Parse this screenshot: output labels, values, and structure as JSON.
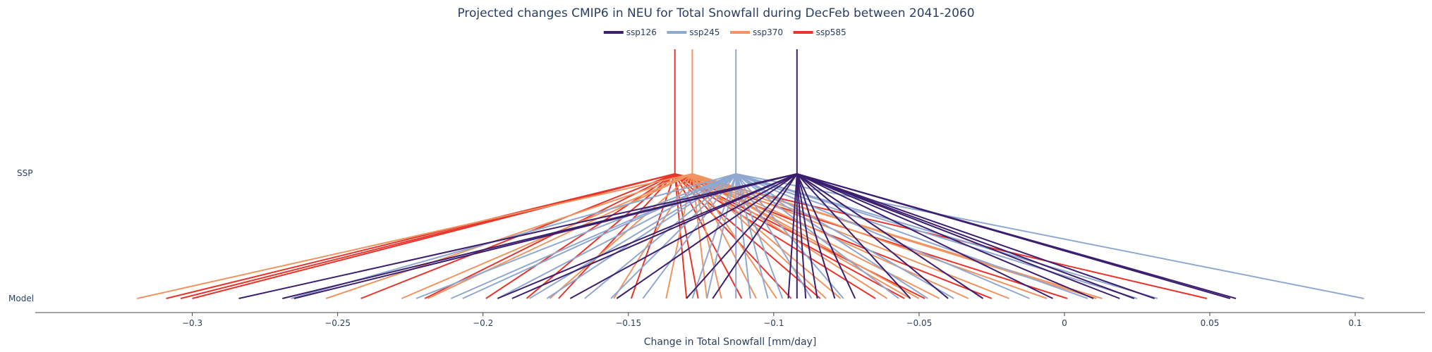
{
  "chart_data": {
    "type": "line",
    "title": "Projected changes CMIP6 in NEU for Total Snowfall during DecFeb between 2041-2060",
    "xlabel": "Change in Total Snowfall [mm/day]",
    "ylabel": "",
    "y_categories": [
      "Model",
      "SSP"
    ],
    "xlim": [
      -0.354,
      0.124
    ],
    "x_ticks": [
      -0.3,
      -0.25,
      -0.2,
      -0.15,
      -0.1,
      -0.05,
      0,
      0.05,
      0.1
    ],
    "x_tick_labels": [
      "−0.3",
      "−0.25",
      "−0.2",
      "−0.15",
      "−0.1",
      "−0.05",
      "0",
      "0.05",
      "0.1"
    ],
    "grid": false,
    "legend_position": "top-center",
    "series": [
      {
        "name": "ssp126",
        "color": "#3b1f6e",
        "ssp_mean": -0.092,
        "models": [
          -0.284,
          -0.269,
          -0.265,
          -0.195,
          -0.19,
          -0.17,
          -0.154,
          -0.13,
          -0.121,
          -0.095,
          -0.092,
          -0.089,
          -0.085,
          -0.079,
          -0.072,
          -0.053,
          -0.04,
          -0.028,
          -0.004,
          0.01,
          0.019,
          0.024,
          0.031,
          0.057,
          0.059
        ]
      },
      {
        "name": "ssp245",
        "color": "#8fa8d0",
        "ssp_mean": -0.113,
        "models": [
          -0.266,
          -0.223,
          -0.211,
          -0.207,
          -0.195,
          -0.184,
          -0.178,
          -0.165,
          -0.156,
          -0.145,
          -0.128,
          -0.123,
          -0.113,
          -0.108,
          -0.102,
          -0.097,
          -0.087,
          -0.076,
          -0.057,
          -0.047,
          -0.038,
          -0.012,
          0.008,
          0.025,
          0.032,
          0.103
        ]
      },
      {
        "name": "ssp370",
        "color": "#f09460",
        "ssp_mean": -0.128,
        "models": [
          -0.319,
          -0.254,
          -0.228,
          -0.219,
          -0.177,
          -0.155,
          -0.137,
          -0.123,
          -0.118,
          -0.106,
          -0.099,
          -0.082,
          -0.077,
          -0.061,
          -0.053,
          -0.05,
          -0.043,
          -0.033,
          -0.019,
          -0.006,
          0.011,
          0.013
        ]
      },
      {
        "name": "ssp585",
        "color": "#e8342a",
        "ssp_mean": -0.134,
        "models": [
          -0.309,
          -0.304,
          -0.3,
          -0.242,
          -0.22,
          -0.199,
          -0.185,
          -0.174,
          -0.149,
          -0.13,
          -0.126,
          -0.111,
          -0.094,
          -0.084,
          -0.065,
          -0.055,
          -0.048,
          -0.025,
          0.001,
          0.049
        ]
      }
    ]
  }
}
